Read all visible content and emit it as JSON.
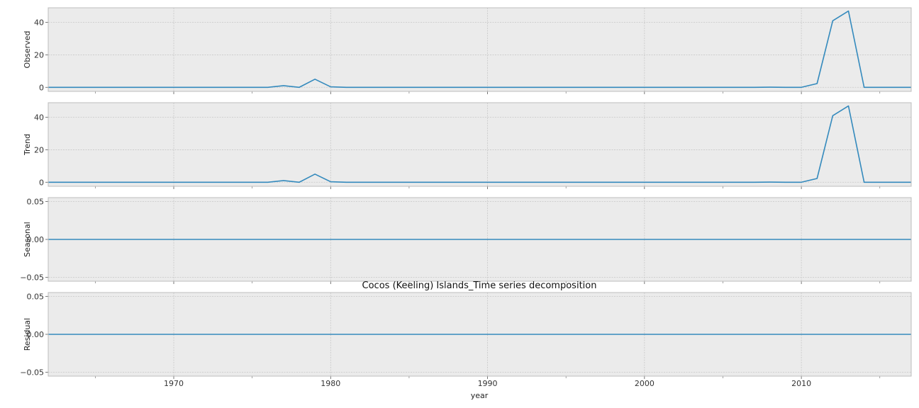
{
  "chart_data": {
    "type": "line",
    "title": "Cocos (Keeling) Islands_Time series decomposition",
    "xlabel": "year",
    "xlim": [
      1962,
      2017
    ],
    "x_ticks": [
      1970,
      1980,
      1990,
      2000,
      2010
    ],
    "x_tick_labels": [
      "1970",
      "1980",
      "1990",
      "2000",
      "2010"
    ],
    "x_minor_ticks": [
      1965,
      1975,
      1985,
      1995,
      2005,
      2015
    ],
    "grid": true,
    "colors": {
      "line": "#348abd",
      "panel_bg": "#ebebeb",
      "grid": "#c8c8c8",
      "frame": "#bcbcbc"
    },
    "x": [
      1962,
      1963,
      1964,
      1965,
      1966,
      1967,
      1968,
      1969,
      1970,
      1971,
      1972,
      1973,
      1974,
      1975,
      1976,
      1977,
      1978,
      1979,
      1980,
      1981,
      1982,
      1983,
      1984,
      1985,
      1986,
      1987,
      1988,
      1989,
      1990,
      1991,
      1992,
      1993,
      1994,
      1995,
      1996,
      1997,
      1998,
      1999,
      2000,
      2001,
      2002,
      2003,
      2004,
      2005,
      2006,
      2007,
      2008,
      2009,
      2010,
      2011,
      2012,
      2013,
      2014,
      2015,
      2016,
      2017
    ],
    "panels": [
      {
        "name": "Observed",
        "ylabel": "Observed",
        "ylim": [
          -2.5,
          49
        ],
        "y_ticks": [
          0,
          20,
          40
        ],
        "y_tick_labels": [
          "0",
          "20",
          "40"
        ],
        "values": [
          0,
          0,
          0,
          0,
          0,
          0,
          0,
          0,
          0,
          0,
          0,
          0,
          0,
          0,
          0,
          1,
          0,
          5,
          0.3,
          0,
          0,
          0,
          0,
          0,
          0,
          0,
          0,
          0,
          0,
          0,
          0,
          0,
          0,
          0,
          0,
          0,
          0,
          0,
          0,
          0,
          0,
          0,
          0,
          0,
          0,
          0,
          0.1,
          0,
          0,
          2.3,
          41,
          47,
          0,
          0,
          0,
          0
        ]
      },
      {
        "name": "Trend",
        "ylabel": "Trend",
        "ylim": [
          -2.5,
          49
        ],
        "y_ticks": [
          0,
          20,
          40
        ],
        "y_tick_labels": [
          "0",
          "20",
          "40"
        ],
        "values": [
          0,
          0,
          0,
          0,
          0,
          0,
          0,
          0,
          0,
          0,
          0,
          0,
          0,
          0,
          0,
          1,
          0,
          5,
          0.3,
          0,
          0,
          0,
          0,
          0,
          0,
          0,
          0,
          0,
          0,
          0,
          0,
          0,
          0,
          0,
          0,
          0,
          0,
          0,
          0,
          0,
          0,
          0,
          0,
          0,
          0,
          0,
          0.1,
          0,
          0,
          2.3,
          41,
          47,
          0,
          0,
          0,
          0
        ]
      },
      {
        "name": "Seasonal",
        "ylabel": "Seasonal",
        "ylim": [
          -0.055,
          0.055
        ],
        "y_ticks": [
          0.05,
          0.0,
          -0.05
        ],
        "y_tick_labels": [
          "0.05",
          "0.00",
          "−0.05"
        ],
        "values": [
          0,
          0,
          0,
          0,
          0,
          0,
          0,
          0,
          0,
          0,
          0,
          0,
          0,
          0,
          0,
          0,
          0,
          0,
          0,
          0,
          0,
          0,
          0,
          0,
          0,
          0,
          0,
          0,
          0,
          0,
          0,
          0,
          0,
          0,
          0,
          0,
          0,
          0,
          0,
          0,
          0,
          0,
          0,
          0,
          0,
          0,
          0,
          0,
          0,
          0,
          0,
          0,
          0,
          0,
          0,
          0
        ]
      },
      {
        "name": "Residual",
        "ylabel": "Residual",
        "ylim": [
          -0.055,
          0.055
        ],
        "y_ticks": [
          0.05,
          0.0,
          -0.05
        ],
        "y_tick_labels": [
          "0.05",
          "0.00",
          "−0.05"
        ],
        "values": [
          0,
          0,
          0,
          0,
          0,
          0,
          0,
          0,
          0,
          0,
          0,
          0,
          0,
          0,
          0,
          0,
          0,
          0,
          0,
          0,
          0,
          0,
          0,
          0,
          0,
          0,
          0,
          0,
          0,
          0,
          0,
          0,
          0,
          0,
          0,
          0,
          0,
          0,
          0,
          0,
          0,
          0,
          0,
          0,
          0,
          0,
          0,
          0,
          0,
          0,
          0,
          0,
          0,
          0,
          0,
          0
        ]
      }
    ]
  }
}
